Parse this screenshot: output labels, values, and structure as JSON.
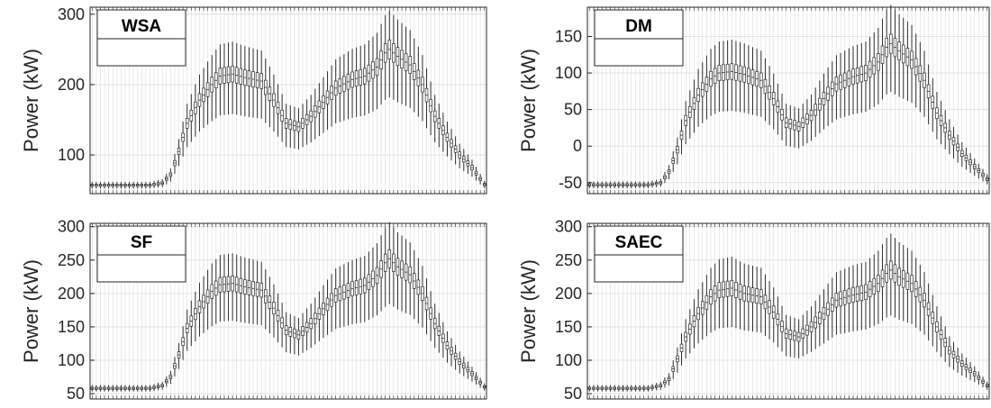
{
  "chart_data": [
    {
      "type": "box",
      "title": "WSA",
      "ylabel": "Power (kW)",
      "ylim": [
        45,
        310
      ],
      "yticks": [
        100,
        200,
        300
      ],
      "grid": true,
      "n_boxes": 96,
      "median_profile": [
        [
          0,
          57
        ],
        [
          14,
          57
        ],
        [
          17,
          60
        ],
        [
          19,
          72
        ],
        [
          21,
          105
        ],
        [
          23,
          145
        ],
        [
          26,
          178
        ],
        [
          29,
          200
        ],
        [
          31,
          212
        ],
        [
          34,
          215
        ],
        [
          37,
          210
        ],
        [
          41,
          205
        ],
        [
          44,
          178
        ],
        [
          47,
          145
        ],
        [
          50,
          140
        ],
        [
          53,
          155
        ],
        [
          56,
          175
        ],
        [
          59,
          195
        ],
        [
          63,
          207
        ],
        [
          66,
          212
        ],
        [
          69,
          225
        ],
        [
          71,
          245
        ],
        [
          72,
          250
        ],
        [
          74,
          240
        ],
        [
          77,
          228
        ],
        [
          80,
          200
        ],
        [
          83,
          155
        ],
        [
          86,
          125
        ],
        [
          89,
          100
        ],
        [
          92,
          82
        ],
        [
          95,
          58
        ]
      ]
    },
    {
      "type": "box",
      "title": "DM",
      "ylabel": "Power (kW)",
      "ylim": [
        -65,
        190
      ],
      "yticks": [
        -50,
        0,
        50,
        100,
        150
      ],
      "grid": true,
      "n_boxes": 96,
      "median_profile": [
        [
          0,
          -53
        ],
        [
          14,
          -53
        ],
        [
          17,
          -50
        ],
        [
          19,
          -35
        ],
        [
          21,
          -5
        ],
        [
          23,
          35
        ],
        [
          26,
          70
        ],
        [
          29,
          92
        ],
        [
          31,
          100
        ],
        [
          34,
          102
        ],
        [
          37,
          98
        ],
        [
          41,
          90
        ],
        [
          44,
          65
        ],
        [
          47,
          32
        ],
        [
          50,
          27
        ],
        [
          53,
          42
        ],
        [
          56,
          65
        ],
        [
          59,
          85
        ],
        [
          63,
          95
        ],
        [
          66,
          100
        ],
        [
          69,
          115
        ],
        [
          71,
          135
        ],
        [
          72,
          140
        ],
        [
          74,
          130
        ],
        [
          77,
          118
        ],
        [
          80,
          90
        ],
        [
          83,
          45
        ],
        [
          86,
          15
        ],
        [
          89,
          -10
        ],
        [
          92,
          -28
        ],
        [
          95,
          -45
        ]
      ]
    },
    {
      "type": "box",
      "title": "SF",
      "ylabel": "Power (kW)",
      "ylim": [
        42,
        305
      ],
      "yticks": [
        50,
        100,
        150,
        200,
        250,
        300
      ],
      "grid": true,
      "n_boxes": 96,
      "median_profile": [
        [
          0,
          58
        ],
        [
          14,
          58
        ],
        [
          17,
          62
        ],
        [
          19,
          75
        ],
        [
          21,
          108
        ],
        [
          23,
          148
        ],
        [
          26,
          180
        ],
        [
          29,
          203
        ],
        [
          31,
          213
        ],
        [
          34,
          215
        ],
        [
          37,
          210
        ],
        [
          41,
          205
        ],
        [
          44,
          178
        ],
        [
          47,
          145
        ],
        [
          50,
          138
        ],
        [
          53,
          155
        ],
        [
          56,
          177
        ],
        [
          59,
          197
        ],
        [
          63,
          207
        ],
        [
          66,
          212
        ],
        [
          69,
          227
        ],
        [
          71,
          246
        ],
        [
          72,
          252
        ],
        [
          74,
          240
        ],
        [
          77,
          228
        ],
        [
          80,
          200
        ],
        [
          83,
          155
        ],
        [
          86,
          122
        ],
        [
          89,
          98
        ],
        [
          92,
          80
        ],
        [
          95,
          60
        ]
      ]
    },
    {
      "type": "box",
      "title": "SAEC",
      "ylabel": "Power (kW)",
      "ylim": [
        42,
        305
      ],
      "yticks": [
        50,
        100,
        150,
        200,
        250,
        300
      ],
      "grid": true,
      "n_boxes": 96,
      "median_profile": [
        [
          0,
          58
        ],
        [
          14,
          58
        ],
        [
          17,
          62
        ],
        [
          19,
          72
        ],
        [
          21,
          102
        ],
        [
          23,
          135
        ],
        [
          26,
          170
        ],
        [
          29,
          195
        ],
        [
          31,
          205
        ],
        [
          34,
          208
        ],
        [
          37,
          200
        ],
        [
          41,
          195
        ],
        [
          44,
          172
        ],
        [
          47,
          140
        ],
        [
          50,
          135
        ],
        [
          53,
          150
        ],
        [
          56,
          170
        ],
        [
          59,
          190
        ],
        [
          63,
          198
        ],
        [
          66,
          202
        ],
        [
          69,
          215
        ],
        [
          71,
          230
        ],
        [
          72,
          235
        ],
        [
          74,
          225
        ],
        [
          77,
          215
        ],
        [
          80,
          190
        ],
        [
          83,
          150
        ],
        [
          86,
          115
        ],
        [
          89,
          95
        ],
        [
          92,
          80
        ],
        [
          95,
          62
        ]
      ]
    }
  ],
  "colors": {
    "box": "#2b2b2b",
    "grid": "#dcdcdc",
    "axis": "#262626"
  }
}
